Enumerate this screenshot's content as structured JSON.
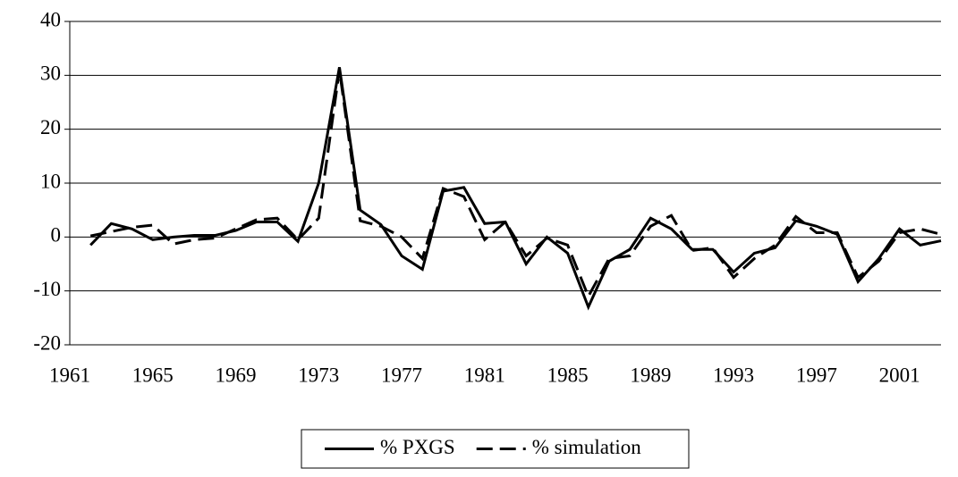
{
  "chart_data": {
    "type": "line",
    "x": [
      1962,
      1963,
      1964,
      1965,
      1966,
      1967,
      1968,
      1969,
      1970,
      1971,
      1972,
      1973,
      1974,
      1975,
      1976,
      1977,
      1978,
      1979,
      1980,
      1981,
      1982,
      1983,
      1984,
      1985,
      1986,
      1987,
      1988,
      1989,
      1990,
      1991,
      1992,
      1993,
      1994,
      1995,
      1996,
      1997,
      1998,
      1999,
      2000,
      2001,
      2002,
      2003
    ],
    "series": [
      {
        "name": "% PXGS",
        "color": "#000000",
        "dash": "solid",
        "values": [
          -1.5,
          2.5,
          1.5,
          -0.5,
          0,
          0.3,
          0.3,
          1.2,
          2.8,
          2.8,
          -0.8,
          10,
          31.5,
          5,
          2.3,
          -3.5,
          -6,
          8.5,
          9.2,
          2.5,
          2.8,
          -5,
          0,
          -3,
          -13,
          -4.5,
          -2.3,
          3.5,
          1.5,
          -2.3,
          -2.3,
          -6.5,
          -3,
          -2,
          3,
          2,
          0.5,
          -8.3,
          -4,
          1.5,
          -1.5,
          -0.7
        ]
      },
      {
        "name": "% simulation",
        "color": "#000000",
        "dash": "dashed",
        "values": [
          0.2,
          1,
          1.8,
          2.2,
          -1.3,
          -0.5,
          -0.2,
          1.5,
          3.2,
          3.5,
          -0.5,
          3.5,
          31,
          3,
          2,
          0,
          -4,
          9,
          7.5,
          -0.5,
          2.8,
          -3.5,
          -0.2,
          -1.5,
          -11,
          -4,
          -3.5,
          2,
          4,
          -2.5,
          -2,
          -7.5,
          -4,
          -1.5,
          3.8,
          0.8,
          0.8,
          -7.5,
          -4.5,
          0.8,
          1.5,
          0.5
        ]
      }
    ],
    "xlim": [
      1961,
      2003
    ],
    "xticks": [
      1961,
      1965,
      1969,
      1973,
      1977,
      1981,
      1985,
      1989,
      1993,
      1997,
      2001
    ],
    "ylim": [
      -20,
      40
    ],
    "yticks": [
      -20,
      -10,
      0,
      10,
      20,
      30,
      40
    ],
    "grid": true,
    "legend": "bottom"
  }
}
